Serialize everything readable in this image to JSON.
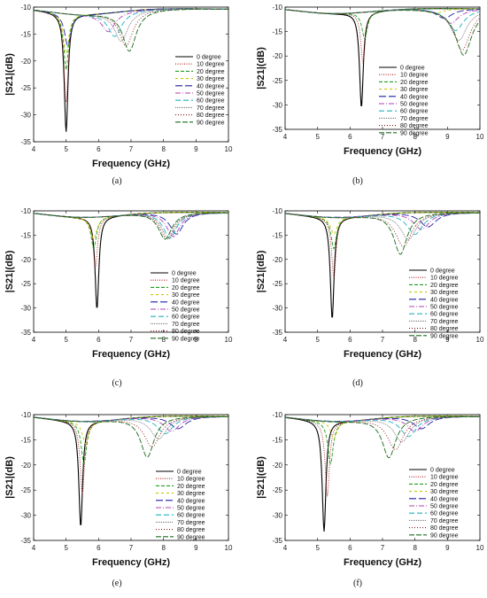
{
  "chart_data": [
    {
      "label": "(a)",
      "type": "line",
      "xlabel": "Frequency (GHz)",
      "ylabel": "|S21|(dB)",
      "xlim": [
        4,
        10
      ],
      "ylim": [
        -35,
        -10
      ],
      "xticks": [
        "4",
        "5",
        "6",
        "7",
        "8",
        "9",
        "10"
      ],
      "yticks": [
        "-35",
        "-30",
        "-25",
        "-20",
        "-15",
        "-10"
      ],
      "legend_position": "right",
      "series": [
        {
          "name": "0 degree",
          "color": "#000000",
          "dash": "",
          "resonance": [
            5.0,
            -33.5
          ],
          "width": 0.07
        },
        {
          "name": "10 degree",
          "color": "#b22222",
          "dash": "1,1.5",
          "resonance": [
            5.0,
            -28.0
          ],
          "width": 0.08
        },
        {
          "name": "20 degree",
          "color": "#1c9e1c",
          "dash": "4,2",
          "resonance": [
            5.0,
            -22.0
          ],
          "width": 0.09
        },
        {
          "name": "30 degree",
          "color": "#c8c800",
          "dash": "3,3",
          "resonance": [
            5.0,
            -19.0
          ],
          "width": 0.1
        },
        {
          "name": "40 degree",
          "color": "#1f1fa8",
          "dash": "8,3",
          "resonance": [
            5.05,
            -17.5
          ],
          "width": 0.12
        },
        {
          "name": "50 degree",
          "color": "#b040b0",
          "dash": "6,2,1,2",
          "resonance": [
            6.3,
            -15.0
          ],
          "width": 0.25
        },
        {
          "name": "60 degree",
          "color": "#20b0c0",
          "dash": "6,3",
          "resonance": [
            6.5,
            -16.0
          ],
          "width": 0.25
        },
        {
          "name": "70 degree",
          "color": "#777777",
          "dash": "1,1",
          "resonance": [
            6.7,
            -17.0
          ],
          "width": 0.25
        },
        {
          "name": "80 degree",
          "color": "#8b1a1a",
          "dash": "1,2",
          "resonance": [
            6.85,
            -18.0
          ],
          "width": 0.25
        },
        {
          "name": "90 degree",
          "color": "#1a6b1a",
          "dash": "6,2",
          "resonance": [
            6.95,
            -19.0
          ],
          "width": 0.25
        }
      ]
    },
    {
      "label": "(b)",
      "type": "line",
      "xlabel": "Frequency (GHz)",
      "ylabel": "|S21|(dB)",
      "xlim": [
        4,
        10
      ],
      "ylim": [
        -35,
        -10
      ],
      "xticks": [
        "4",
        "5",
        "6",
        "7",
        "8",
        "9",
        "10"
      ],
      "yticks": [
        "-35",
        "-30",
        "-25",
        "-20",
        "-15",
        "-10"
      ],
      "legend_position": "right",
      "series": [
        {
          "name": "0 degree",
          "color": "#000000",
          "dash": "",
          "resonance": [
            6.35,
            -31.0
          ],
          "width": 0.07
        },
        {
          "name": "10 degree",
          "color": "#b22222",
          "dash": "1,1.5",
          "resonance": [
            6.4,
            -22.0
          ],
          "width": 0.08
        },
        {
          "name": "20 degree",
          "color": "#1c9e1c",
          "dash": "4,2",
          "resonance": [
            6.45,
            -17.0
          ],
          "width": 0.1
        },
        {
          "name": "30 degree",
          "color": "#c8c800",
          "dash": "3,3",
          "resonance": [
            8.6,
            -12.5
          ],
          "width": 0.3
        },
        {
          "name": "40 degree",
          "color": "#1f1fa8",
          "dash": "8,3",
          "resonance": [
            8.9,
            -13.5
          ],
          "width": 0.3
        },
        {
          "name": "50 degree",
          "color": "#b040b0",
          "dash": "6,2,1,2",
          "resonance": [
            9.1,
            -14.5
          ],
          "width": 0.3
        },
        {
          "name": "60 degree",
          "color": "#20b0c0",
          "dash": "6,3",
          "resonance": [
            9.25,
            -16.0
          ],
          "width": 0.3
        },
        {
          "name": "70 degree",
          "color": "#777777",
          "dash": "1,1",
          "resonance": [
            9.35,
            -18.0
          ],
          "width": 0.3
        },
        {
          "name": "80 degree",
          "color": "#8b1a1a",
          "dash": "1,2",
          "resonance": [
            9.45,
            -20.0
          ],
          "width": 0.3
        },
        {
          "name": "90 degree",
          "color": "#1a6b1a",
          "dash": "6,2",
          "resonance": [
            9.5,
            -21.0
          ],
          "width": 0.3
        }
      ]
    },
    {
      "label": "(c)",
      "type": "line",
      "xlabel": "Frequency (GHz)",
      "ylabel": "|S21|(dB)",
      "xlim": [
        4,
        10
      ],
      "ylim": [
        -35,
        -10
      ],
      "xticks": [
        "4",
        "5",
        "6",
        "7",
        "8",
        "9",
        "10"
      ],
      "yticks": [
        "-35",
        "-30",
        "-25",
        "-20",
        "-15",
        "-10"
      ],
      "legend_position": "right",
      "series": [
        {
          "name": "0 degree",
          "color": "#000000",
          "dash": "",
          "resonance": [
            5.95,
            -30.5
          ],
          "width": 0.07
        },
        {
          "name": "10 degree",
          "color": "#b22222",
          "dash": "1,1.5",
          "resonance": [
            5.9,
            -22.0
          ],
          "width": 0.08
        },
        {
          "name": "20 degree",
          "color": "#1c9e1c",
          "dash": "4,2",
          "resonance": [
            5.85,
            -18.0
          ],
          "width": 0.1
        },
        {
          "name": "30 degree",
          "color": "#c8c800",
          "dash": "3,3",
          "resonance": [
            5.85,
            -16.0
          ],
          "width": 0.12
        },
        {
          "name": "40 degree",
          "color": "#1f1fa8",
          "dash": "8,3",
          "resonance": [
            8.4,
            -16.0
          ],
          "width": 0.25
        },
        {
          "name": "50 degree",
          "color": "#b040b0",
          "dash": "6,2,1,2",
          "resonance": [
            8.3,
            -16.5
          ],
          "width": 0.25
        },
        {
          "name": "60 degree",
          "color": "#20b0c0",
          "dash": "6,3",
          "resonance": [
            8.2,
            -16.8
          ],
          "width": 0.25
        },
        {
          "name": "70 degree",
          "color": "#777777",
          "dash": "1,1",
          "resonance": [
            8.15,
            -17.0
          ],
          "width": 0.25
        },
        {
          "name": "80 degree",
          "color": "#8b1a1a",
          "dash": "1,2",
          "resonance": [
            8.1,
            -17.0
          ],
          "width": 0.25
        },
        {
          "name": "90 degree",
          "color": "#1a6b1a",
          "dash": "6,2",
          "resonance": [
            8.05,
            -17.0
          ],
          "width": 0.25
        }
      ]
    },
    {
      "label": "(d)",
      "type": "line",
      "xlabel": "Frequency (GHz)",
      "ylabel": "|S21|(dB)",
      "xlim": [
        4,
        10
      ],
      "ylim": [
        -35,
        -10
      ],
      "xticks": [
        "4",
        "5",
        "6",
        "7",
        "8",
        "9",
        "10"
      ],
      "yticks": [
        "-35",
        "-30",
        "-25",
        "-20",
        "-15",
        "-10"
      ],
      "legend_position": "right",
      "series": [
        {
          "name": "0 degree",
          "color": "#000000",
          "dash": "",
          "resonance": [
            5.45,
            -32.5
          ],
          "width": 0.07
        },
        {
          "name": "10 degree",
          "color": "#b22222",
          "dash": "1,1.5",
          "resonance": [
            5.5,
            -24.0
          ],
          "width": 0.08
        },
        {
          "name": "20 degree",
          "color": "#1c9e1c",
          "dash": "4,2",
          "resonance": [
            5.5,
            -18.0
          ],
          "width": 0.1
        },
        {
          "name": "30 degree",
          "color": "#c8c800",
          "dash": "3,3",
          "resonance": [
            5.5,
            -15.0
          ],
          "width": 0.12
        },
        {
          "name": "40 degree",
          "color": "#1f1fa8",
          "dash": "8,3",
          "resonance": [
            8.4,
            -14.5
          ],
          "width": 0.3
        },
        {
          "name": "50 degree",
          "color": "#b040b0",
          "dash": "6,2,1,2",
          "resonance": [
            8.2,
            -15.0
          ],
          "width": 0.3
        },
        {
          "name": "60 degree",
          "color": "#20b0c0",
          "dash": "6,3",
          "resonance": [
            8.0,
            -16.0
          ],
          "width": 0.3
        },
        {
          "name": "70 degree",
          "color": "#777777",
          "dash": "1,1",
          "resonance": [
            7.8,
            -17.0
          ],
          "width": 0.3
        },
        {
          "name": "80 degree",
          "color": "#8b1a1a",
          "dash": "1,2",
          "resonance": [
            7.65,
            -18.5
          ],
          "width": 0.3
        },
        {
          "name": "90 degree",
          "color": "#1a6b1a",
          "dash": "6,2",
          "resonance": [
            7.55,
            -20.0
          ],
          "width": 0.25
        }
      ]
    },
    {
      "label": "(e)",
      "type": "line",
      "xlabel": "Frequency (GHz)",
      "ylabel": "|S21|(dB)",
      "xlim": [
        4,
        10
      ],
      "ylim": [
        -35,
        -10
      ],
      "xticks": [
        "4",
        "5",
        "6",
        "7",
        "8",
        "9",
        "10"
      ],
      "yticks": [
        "-35",
        "-30",
        "-25",
        "-20",
        "-15",
        "-10"
      ],
      "legend_position": "right",
      "series": [
        {
          "name": "0 degree",
          "color": "#000000",
          "dash": "",
          "resonance": [
            5.45,
            -32.5
          ],
          "width": 0.07
        },
        {
          "name": "10 degree",
          "color": "#b22222",
          "dash": "1,1.5",
          "resonance": [
            5.5,
            -26.0
          ],
          "width": 0.08
        },
        {
          "name": "20 degree",
          "color": "#1c9e1c",
          "dash": "4,2",
          "resonance": [
            5.55,
            -20.0
          ],
          "width": 0.1
        },
        {
          "name": "30 degree",
          "color": "#c8c800",
          "dash": "3,3",
          "resonance": [
            5.6,
            -16.0
          ],
          "width": 0.12
        },
        {
          "name": "40 degree",
          "color": "#1f1fa8",
          "dash": "8,3",
          "resonance": [
            8.45,
            -14.0
          ],
          "width": 0.3
        },
        {
          "name": "50 degree",
          "color": "#b040b0",
          "dash": "6,2,1,2",
          "resonance": [
            8.25,
            -14.5
          ],
          "width": 0.3
        },
        {
          "name": "60 degree",
          "color": "#20b0c0",
          "dash": "6,3",
          "resonance": [
            8.05,
            -15.0
          ],
          "width": 0.3
        },
        {
          "name": "70 degree",
          "color": "#777777",
          "dash": "1,1",
          "resonance": [
            7.85,
            -16.0
          ],
          "width": 0.3
        },
        {
          "name": "80 degree",
          "color": "#8b1a1a",
          "dash": "1,2",
          "resonance": [
            7.65,
            -17.5
          ],
          "width": 0.3
        },
        {
          "name": "90 degree",
          "color": "#1a6b1a",
          "dash": "6,2",
          "resonance": [
            7.5,
            -19.5
          ],
          "width": 0.25
        }
      ]
    },
    {
      "label": "(f)",
      "type": "line",
      "xlabel": "Frequency (GHz)",
      "ylabel": "|S21|(dB)",
      "xlim": [
        4,
        10
      ],
      "ylim": [
        -35,
        -10
      ],
      "xticks": [
        "4",
        "5",
        "6",
        "7",
        "8",
        "9",
        "10"
      ],
      "yticks": [
        "-35",
        "-30",
        "-25",
        "-20",
        "-15",
        "-10"
      ],
      "legend_position": "right",
      "series": [
        {
          "name": "0 degree",
          "color": "#000000",
          "dash": "",
          "resonance": [
            5.2,
            -33.5
          ],
          "width": 0.07
        },
        {
          "name": "10 degree",
          "color": "#b22222",
          "dash": "1,1.5",
          "resonance": [
            5.3,
            -26.5
          ],
          "width": 0.08
        },
        {
          "name": "20 degree",
          "color": "#1c9e1c",
          "dash": "4,2",
          "resonance": [
            5.4,
            -20.0
          ],
          "width": 0.1
        },
        {
          "name": "30 degree",
          "color": "#c8c800",
          "dash": "3,3",
          "resonance": [
            5.5,
            -15.0
          ],
          "width": 0.12
        },
        {
          "name": "40 degree",
          "color": "#1f1fa8",
          "dash": "8,3",
          "resonance": [
            8.2,
            -14.0
          ],
          "width": 0.3
        },
        {
          "name": "50 degree",
          "color": "#b040b0",
          "dash": "6,2,1,2",
          "resonance": [
            8.0,
            -14.5
          ],
          "width": 0.3
        },
        {
          "name": "60 degree",
          "color": "#20b0c0",
          "dash": "6,3",
          "resonance": [
            7.8,
            -15.5
          ],
          "width": 0.3
        },
        {
          "name": "70 degree",
          "color": "#777777",
          "dash": "1,1",
          "resonance": [
            7.6,
            -16.5
          ],
          "width": 0.3
        },
        {
          "name": "80 degree",
          "color": "#8b1a1a",
          "dash": "1,2",
          "resonance": [
            7.4,
            -18.0
          ],
          "width": 0.3
        },
        {
          "name": "90 degree",
          "color": "#1a6b1a",
          "dash": "6,2",
          "resonance": [
            7.2,
            -19.5
          ],
          "width": 0.25
        }
      ]
    }
  ]
}
